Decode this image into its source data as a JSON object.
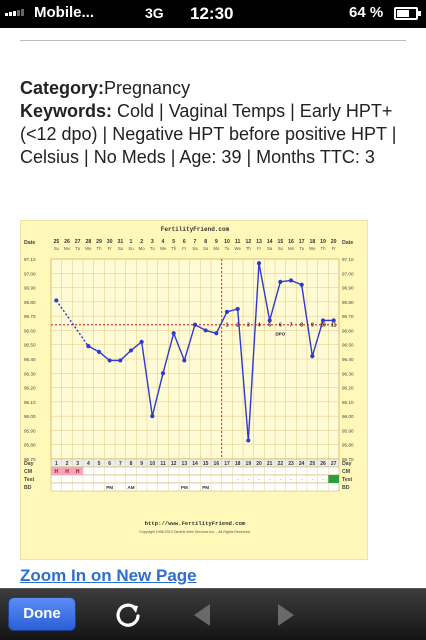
{
  "status_bar": {
    "carrier": "Mobile...",
    "network": "3G",
    "time": "12:30",
    "battery_percent": "64 %",
    "battery_level": 0.64
  },
  "info": {
    "category_label": "Category:",
    "category_value": "Pregnancy",
    "keywords_label": "Keywords:",
    "keywords_value": " Cold | Vaginal Temps | Early HPT+ (<12 dpo) | Negative HPT before positive HPT | Celsius | No Meds | Age: 39 | Months TTC: 3"
  },
  "chart_data": {
    "type": "line",
    "title": "FertilityFriend.com",
    "footer_url": "http://www.FertilityFriend.com",
    "footer_copyright": "Copyright 1998-2013 Tamtris Web Services Inc. - All Rights Reserved.",
    "row_labels": {
      "date": "Date",
      "day": "Day",
      "cm": "CM",
      "test": "Test",
      "bd": "BD"
    },
    "dates": [
      "25",
      "26",
      "27",
      "28",
      "29",
      "30",
      "31",
      "1",
      "2",
      "3",
      "4",
      "5",
      "6",
      "7",
      "8",
      "9",
      "10",
      "11",
      "12",
      "13",
      "14",
      "15",
      "16",
      "17",
      "18",
      "19",
      "20"
    ],
    "weekdays": [
      "Su",
      "Mo",
      "Tu",
      "We",
      "Th",
      "Fr",
      "Sa",
      "Su",
      "Mo",
      "Tu",
      "We",
      "Th",
      "Fr",
      "Sa",
      "Su",
      "Mo",
      "Tu",
      "We",
      "Th",
      "Fr",
      "Sa",
      "Su",
      "Mo",
      "Tu",
      "We",
      "Th",
      "Fr"
    ],
    "cycle_days": [
      1,
      2,
      3,
      4,
      5,
      6,
      7,
      8,
      9,
      10,
      11,
      12,
      13,
      14,
      15,
      16,
      17,
      18,
      19,
      20,
      21,
      22,
      23,
      24,
      25,
      26,
      27
    ],
    "y_ticks": [
      "97.10",
      "97.00",
      "96.90",
      "96.80",
      "96.70",
      "96.60",
      "96.50",
      "96.40",
      "96.30",
      "96.20",
      "96.10",
      "96.00",
      "95.90",
      "95.80",
      "95.70"
    ],
    "ylim": [
      95.7,
      97.1
    ],
    "temps": [
      96.81,
      null,
      null,
      96.49,
      96.45,
      96.39,
      96.39,
      96.46,
      96.52,
      96.0,
      96.3,
      96.58,
      96.39,
      96.64,
      96.6,
      96.58,
      96.73,
      96.75,
      95.83,
      97.07,
      96.67,
      96.94,
      96.95,
      96.92,
      96.42,
      96.67,
      96.67
    ],
    "coverline": 96.64,
    "ovulation_day": 16,
    "dpo_labels": [
      "1",
      "2",
      "3",
      "4",
      "5",
      "6",
      "7",
      "8",
      "9",
      "10",
      "11"
    ],
    "dpo_marker": "DPO",
    "cm_marks": [
      "H",
      "H",
      "H"
    ],
    "intercourse_marks": [
      {
        "day": 6,
        "label": "PM"
      },
      {
        "day": 8,
        "label": "AM"
      },
      {
        "day": 13,
        "label": "PM"
      },
      {
        "day": 15,
        "label": "PM"
      }
    ],
    "test_positive_day": 27
  },
  "links": {
    "zoom": "Zoom In on New Page"
  },
  "toolbar": {
    "done_label": "Done",
    "reload_icon": "reload-icon",
    "back_icon": "back-arrow-icon",
    "forward_icon": "forward-arrow-icon"
  },
  "colors": {
    "chart_bg": "#fff8b8",
    "temp_line": "#2f3ad0",
    "coverline": "#e03b3b",
    "ovulation_line": "#e03b3b",
    "cm_fill": "#f6a6b8",
    "test_positive": "#2e9e3a",
    "done_button": "#3a6ee6"
  }
}
